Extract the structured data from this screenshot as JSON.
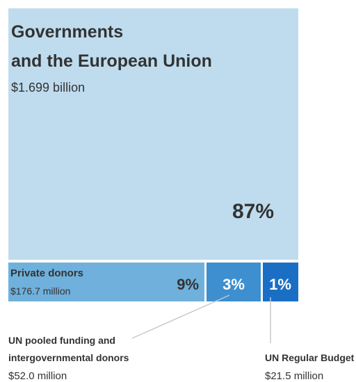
{
  "chart_data": {
    "type": "treemap",
    "items": [
      {
        "label_lines": [
          "Governments",
          "and the European Union"
        ],
        "amount": "$1.699 billion",
        "percent_label": "87%",
        "percent": 87,
        "color": "#bfdcee",
        "text_color": "#333333"
      },
      {
        "label_lines": [
          "Private donors"
        ],
        "amount": "$176.7 million",
        "percent_label": "9%",
        "percent": 9,
        "color": "#6fb0dc",
        "text_color": "#333333"
      },
      {
        "label_lines": [
          "UN pooled funding and",
          "intergovernmental donors"
        ],
        "amount": "$52.0 million",
        "percent_label": "3%",
        "percent": 3,
        "color": "#3d8fd0",
        "text_color": "#ffffff"
      },
      {
        "label_lines": [
          "UN Regular Budget"
        ],
        "amount": "$21.5 million",
        "percent_label": "1%",
        "percent": 1,
        "color": "#1a6fc4",
        "text_color": "#ffffff"
      }
    ]
  }
}
